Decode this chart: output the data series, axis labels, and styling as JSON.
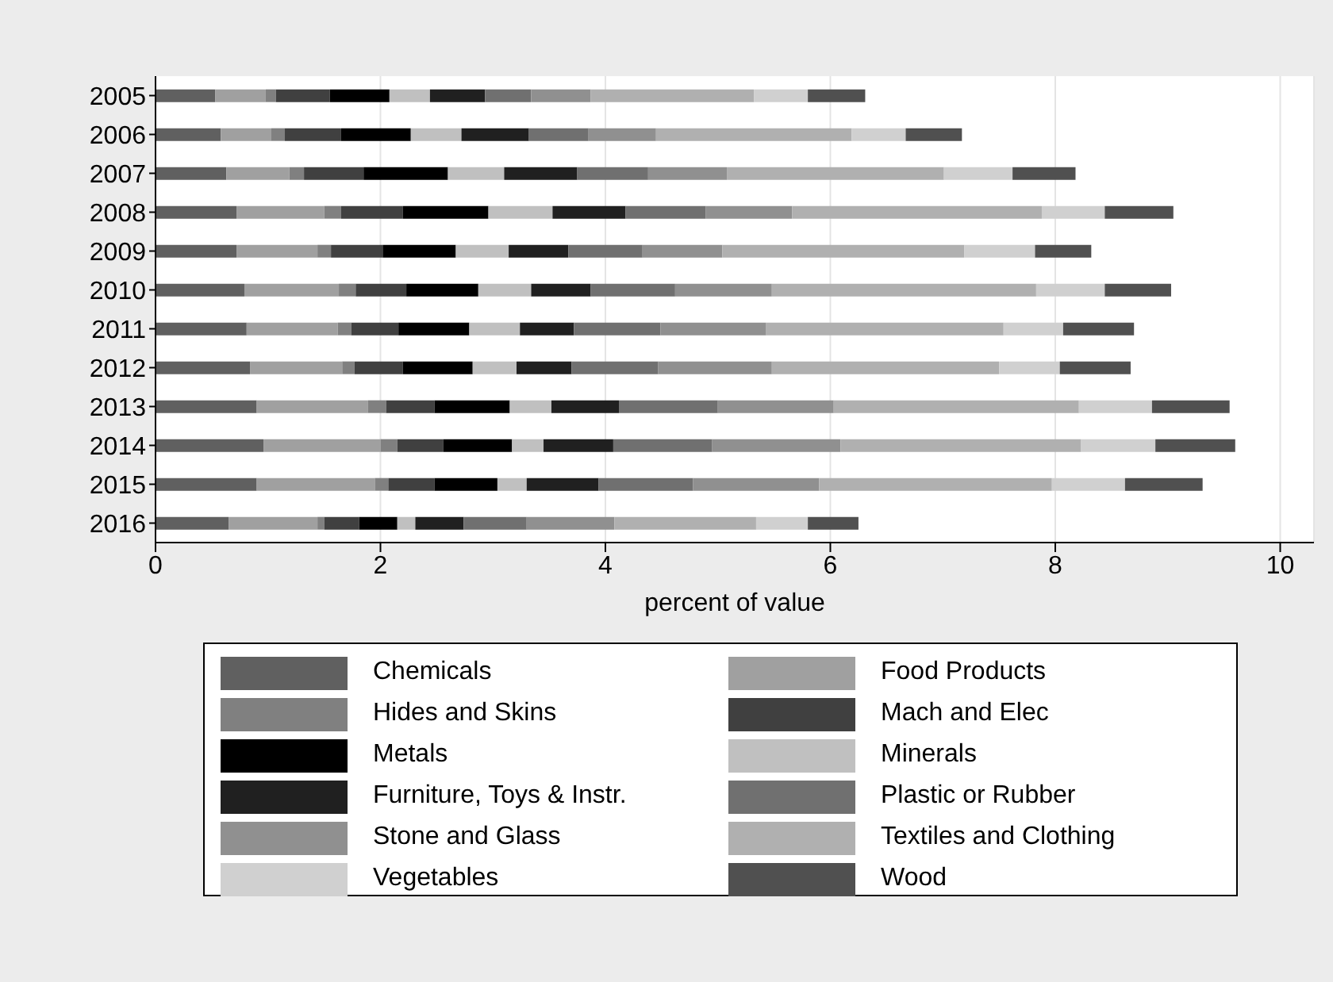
{
  "chart_data": {
    "type": "bar",
    "orientation": "horizontal",
    "stacked": true,
    "xlabel": "percent of value",
    "categories": [
      "2005",
      "2006",
      "2007",
      "2008",
      "2009",
      "2010",
      "2011",
      "2012",
      "2013",
      "2014",
      "2015",
      "2016"
    ],
    "series": [
      {
        "name": "Chemicals",
        "color": "#606060",
        "values": [
          0.53,
          0.58,
          0.63,
          0.72,
          0.72,
          0.79,
          0.81,
          0.84,
          0.9,
          0.96,
          0.9,
          0.65
        ]
      },
      {
        "name": "Food Products",
        "color": "#a0a0a0",
        "values": [
          0.45,
          0.45,
          0.56,
          0.78,
          0.72,
          0.84,
          0.81,
          0.82,
          0.99,
          1.04,
          1.05,
          0.79
        ]
      },
      {
        "name": "Hides and Skins",
        "color": "#808080",
        "values": [
          0.09,
          0.12,
          0.13,
          0.15,
          0.12,
          0.15,
          0.12,
          0.11,
          0.16,
          0.15,
          0.12,
          0.06
        ]
      },
      {
        "name": "Mach and Elec",
        "color": "#404040",
        "values": [
          0.48,
          0.5,
          0.53,
          0.55,
          0.46,
          0.45,
          0.42,
          0.43,
          0.43,
          0.41,
          0.41,
          0.31
        ]
      },
      {
        "name": "Metals",
        "color": "#000000",
        "values": [
          0.53,
          0.62,
          0.75,
          0.76,
          0.65,
          0.64,
          0.63,
          0.62,
          0.67,
          0.61,
          0.56,
          0.34
        ]
      },
      {
        "name": "Minerals",
        "color": "#c0c0c0",
        "values": [
          0.36,
          0.45,
          0.5,
          0.57,
          0.47,
          0.47,
          0.45,
          0.39,
          0.37,
          0.28,
          0.26,
          0.16
        ]
      },
      {
        "name": "Furniture, Toys & Instr.",
        "color": "#202020",
        "values": [
          0.49,
          0.6,
          0.65,
          0.65,
          0.53,
          0.53,
          0.48,
          0.49,
          0.6,
          0.62,
          0.64,
          0.43
        ]
      },
      {
        "name": "Plastic or Rubber",
        "color": "#707070",
        "values": [
          0.41,
          0.53,
          0.63,
          0.71,
          0.66,
          0.75,
          0.77,
          0.77,
          0.88,
          0.88,
          0.84,
          0.56
        ]
      },
      {
        "name": "Stone and Glass",
        "color": "#909090",
        "values": [
          0.53,
          0.6,
          0.7,
          0.77,
          0.71,
          0.86,
          0.94,
          1.01,
          1.03,
          1.14,
          1.12,
          0.78
        ]
      },
      {
        "name": "Textiles and Clothing",
        "color": "#b0b0b0",
        "values": [
          1.45,
          1.74,
          1.93,
          2.22,
          2.15,
          2.35,
          2.11,
          2.02,
          2.18,
          2.14,
          2.07,
          1.26
        ]
      },
      {
        "name": "Vegetables",
        "color": "#d0d0d0",
        "values": [
          0.48,
          0.48,
          0.61,
          0.56,
          0.63,
          0.61,
          0.53,
          0.54,
          0.65,
          0.66,
          0.65,
          0.46
        ]
      },
      {
        "name": "Wood",
        "color": "#505050",
        "values": [
          0.51,
          0.5,
          0.56,
          0.61,
          0.5,
          0.59,
          0.63,
          0.63,
          0.69,
          0.71,
          0.69,
          0.45
        ]
      }
    ],
    "xlim": [
      0,
      10.3
    ],
    "xticks": [
      0,
      2,
      4,
      6,
      8,
      10
    ],
    "grid": "x",
    "legend": "bottom"
  }
}
